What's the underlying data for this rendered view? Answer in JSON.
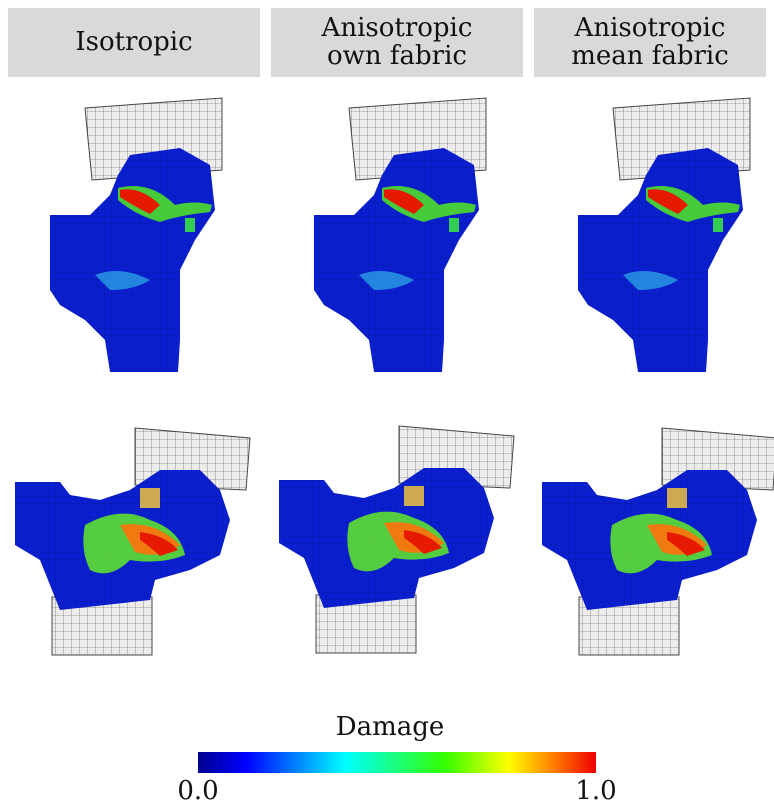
{
  "headers": [
    [
      "Isotropic"
    ],
    [
      "Anisotropic",
      "own fabric"
    ],
    [
      "Anisotropic",
      "mean fabric"
    ]
  ],
  "colorbar": {
    "title": "Damage",
    "range": [
      0,
      1
    ],
    "ticks": [
      {
        "value": 0,
        "label": "0.0"
      },
      {
        "value": 1,
        "label": "1.0"
      }
    ]
  }
}
